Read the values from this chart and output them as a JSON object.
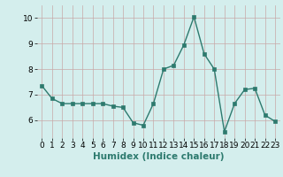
{
  "x": [
    0,
    1,
    2,
    3,
    4,
    5,
    6,
    7,
    8,
    9,
    10,
    11,
    12,
    13,
    14,
    15,
    16,
    17,
    18,
    19,
    20,
    21,
    22,
    23
  ],
  "y": [
    7.35,
    6.85,
    6.65,
    6.65,
    6.65,
    6.65,
    6.65,
    6.55,
    6.5,
    5.9,
    5.8,
    6.65,
    8.0,
    8.15,
    8.95,
    10.05,
    8.6,
    8.0,
    5.55,
    6.65,
    7.2,
    7.25,
    6.2,
    5.95
  ],
  "xlabel": "Humidex (Indice chaleur)",
  "ylim": [
    5.3,
    10.5
  ],
  "xlim": [
    -0.5,
    23.5
  ],
  "yticks": [
    6,
    7,
    8,
    9,
    10
  ],
  "xticks": [
    0,
    1,
    2,
    3,
    4,
    5,
    6,
    7,
    8,
    9,
    10,
    11,
    12,
    13,
    14,
    15,
    16,
    17,
    18,
    19,
    20,
    21,
    22,
    23
  ],
  "line_color": "#2d7a6e",
  "bg_color": "#d4eeed",
  "grid_color": "#c8a8a8",
  "marker_size": 2.5,
  "line_width": 1.0,
  "tick_fontsize": 6.5,
  "xlabel_fontsize": 7.5
}
